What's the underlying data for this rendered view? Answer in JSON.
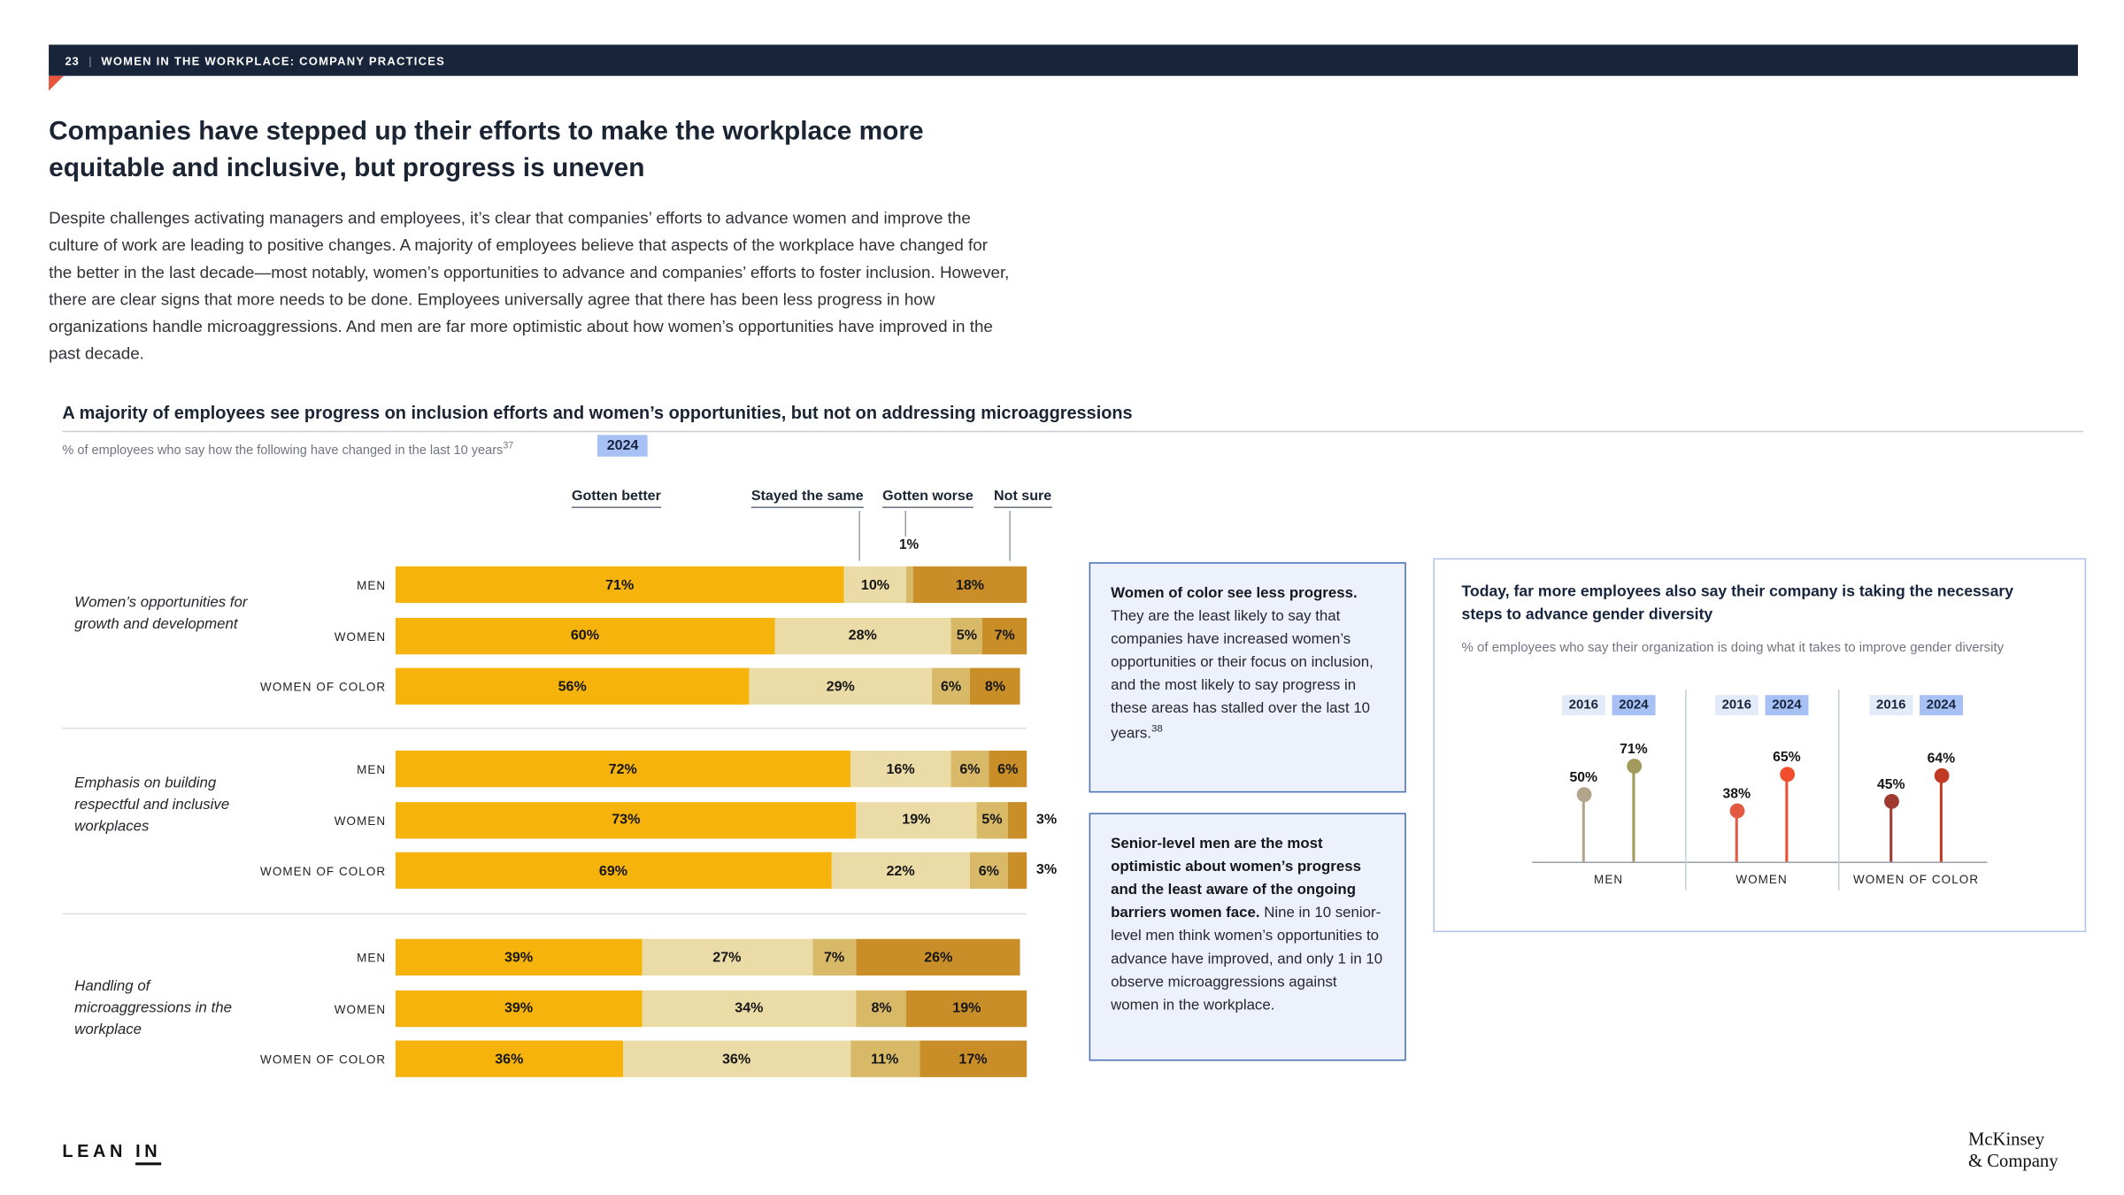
{
  "colors": {
    "header_bar": "#18243A",
    "accent_triangle": "#E8543C",
    "highlight_chip_bg": "#A7C1F4",
    "light_chip_bg": "#E4EBF8",
    "callout_bg": "#ECF1FB",
    "callout_border": "#4A6FB5",
    "panel_border": "#AFC4E8"
  },
  "header": {
    "page_number": "23",
    "divider": "|",
    "title": "WOMEN IN THE WORKPLACE: COMPANY PRACTICES"
  },
  "heading": "Companies have stepped up their efforts to make the workplace more equitable and inclusive, but progress is uneven",
  "intro": "Despite challenges activating managers and employees, it’s clear that companies’ efforts to advance women and improve the culture of work are leading to positive changes. A majority of employees believe that aspects of the workplace have changed for the better in the last decade—most notably, women’s opportunities to advance and companies’ efforts to foster inclusion. However, there are clear signs that more needs to be done. Employees universally agree that there has been less progress in how organizations handle microaggressions. And men are far more optimistic about how women’s opportunities have improved in the past decade.",
  "figure": {
    "title": "A majority of employees see progress on inclusion efforts and women’s opportunities, but not on addressing microaggressions",
    "subtitle": "% of employees who say how the following have changed in the last 10 years",
    "footnote": "37",
    "year_chip": "2024",
    "annotation": "1%"
  },
  "chart_data": [
    {
      "type": "bar",
      "variant": "horizontal-stacked",
      "unit": "%",
      "legend": [
        "Gotten better",
        "Stayed the same",
        "Gotten worse",
        "Not sure"
      ],
      "colors": {
        "gotten_better": "#F5B30B",
        "stayed_same": "#EBDCA7",
        "gotten_worse": "#D8B968",
        "not_sure": "#C98E27"
      },
      "groups": [
        {
          "label": "Women’s opportunities for growth and development",
          "rows": [
            {
              "category": "MEN",
              "values": [
                71,
                10,
                1,
                18
              ],
              "labels": [
                "71%",
                "10%",
                "1%",
                "18%"
              ]
            },
            {
              "category": "WOMEN",
              "values": [
                60,
                28,
                5,
                7
              ],
              "labels": [
                "60%",
                "28%",
                "5%",
                "7%"
              ]
            },
            {
              "category": "WOMEN OF COLOR",
              "values": [
                56,
                29,
                6,
                8
              ],
              "labels": [
                "56%",
                "29%",
                "6%",
                "8%"
              ]
            }
          ]
        },
        {
          "label": "Emphasis on building respectful and inclusive workplaces",
          "rows": [
            {
              "category": "MEN",
              "values": [
                72,
                16,
                6,
                6
              ],
              "labels": [
                "72%",
                "16%",
                "6%",
                "6%"
              ]
            },
            {
              "category": "WOMEN",
              "values": [
                73,
                19,
                5,
                3
              ],
              "labels": [
                "73%",
                "19%",
                "5%",
                "3%"
              ]
            },
            {
              "category": "WOMEN OF COLOR",
              "values": [
                69,
                22,
                6,
                3
              ],
              "labels": [
                "69%",
                "22%",
                "6%",
                "3%"
              ]
            }
          ]
        },
        {
          "label": "Handling of microaggressions in the workplace",
          "rows": [
            {
              "category": "MEN",
              "values": [
                39,
                27,
                7,
                26
              ],
              "labels": [
                "39%",
                "27%",
                "7%",
                "26%"
              ]
            },
            {
              "category": "WOMEN",
              "values": [
                39,
                34,
                8,
                19
              ],
              "labels": [
                "39%",
                "34%",
                "8%",
                "19%"
              ]
            },
            {
              "category": "WOMEN OF COLOR",
              "values": [
                36,
                36,
                11,
                17
              ],
              "labels": [
                "36%",
                "36%",
                "11%",
                "17%"
              ]
            }
          ]
        }
      ]
    },
    {
      "type": "lollipop",
      "title": "Today, far more employees also say their company is taking the necessary steps to advance gender diversity",
      "subtitle": "% of employees who say their organization is doing what it takes to improve gender diversity",
      "unit": "%",
      "years": [
        "2016",
        "2024"
      ],
      "chip_colors": {
        "y2016": "#E4EBF8",
        "y2024": "#A7C1F4"
      },
      "groups": [
        {
          "label": "MEN",
          "points": [
            {
              "year": "2016",
              "value": 50,
              "label": "50%",
              "color": "#B3A48C"
            },
            {
              "year": "2024",
              "value": 71,
              "label": "71%",
              "color": "#A39A5E"
            }
          ]
        },
        {
          "label": "WOMEN",
          "points": [
            {
              "year": "2016",
              "value": 38,
              "label": "38%",
              "color": "#E25A41"
            },
            {
              "year": "2024",
              "value": 65,
              "label": "65%",
              "color": "#F04E2C"
            }
          ]
        },
        {
          "label": "WOMEN OF COLOR",
          "points": [
            {
              "year": "2016",
              "value": 45,
              "label": "45%",
              "color": "#A03A2E"
            },
            {
              "year": "2024",
              "value": 64,
              "label": "64%",
              "color": "#C13B24"
            }
          ]
        }
      ]
    }
  ],
  "callouts": [
    {
      "lead": "Women of color see less progress.",
      "body": "They are the least likely to say that companies have increased women’s opportunities or their focus on inclusion, and the most likely to say progress in these areas has stalled over the last 10 years.",
      "footnote": "38"
    },
    {
      "lead": "Senior-level men are the most optimistic about women’s progress and the least aware of the ongoing barriers women face.",
      "body": "Nine in 10 senior-level men think women’s opportunities to advance have improved, and only 1 in 10 observe microaggressions against women in the workplace."
    }
  ],
  "footer": {
    "lean": "LEAN",
    "in": "IN",
    "mckinsey_line1": "McKinsey",
    "mckinsey_line2": "& Company"
  }
}
